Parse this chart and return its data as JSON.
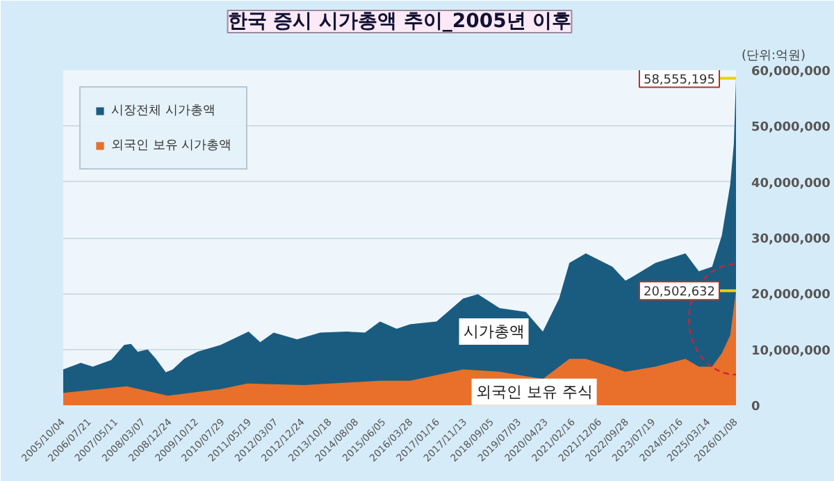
{
  "chart_data": {
    "type": "area",
    "title": "한국 증시 시가총액 추이_2005년 이후",
    "ylabel": "(단위:억원)",
    "series": [
      {
        "name": "시장전체 시가총액",
        "color": "#1a5c80",
        "x": [
          "2005-10-04",
          "2006-04-15",
          "2006-08-25",
          "2007-03-15",
          "2007-08-05",
          "2007-10-20",
          "2008-01-01",
          "2008-04-20",
          "2008-07-20",
          "2008-11-05",
          "2009-01-20",
          "2009-05-25",
          "2009-10-20",
          "2010-07-01",
          "2011-05-05",
          "2011-09-10",
          "2012-02-05",
          "2012-10-20",
          "2013-07-01",
          "2014-04-20",
          "2014-11-05",
          "2015-04-20",
          "2015-10-20",
          "2016-03-15",
          "2017-01-01",
          "2017-10-20",
          "2018-04-01",
          "2018-11-25",
          "2019-09-10",
          "2020-03-15",
          "2020-09-10",
          "2021-01-01",
          "2021-07-01",
          "2022-04-20",
          "2022-09-10",
          "2022-11-25",
          "2023-08-05",
          "2024-07-01",
          "2024-11-25",
          "2025-04-20",
          "2025-08-05",
          "2025-11-05",
          "2025-12-15",
          "2026-01-08"
        ],
        "values": [
          6400000,
          7600000,
          6900000,
          8100000,
          10800000,
          11000000,
          9600000,
          10000000,
          8300000,
          5900000,
          6400000,
          8300000,
          9600000,
          10800000,
          13200000,
          11300000,
          13000000,
          11800000,
          13000000,
          13200000,
          13000000,
          15000000,
          13700000,
          14500000,
          15000000,
          19100000,
          19900000,
          17400000,
          16700000,
          13200000,
          19100000,
          25500000,
          27200000,
          24800000,
          22300000,
          23000000,
          25500000,
          27200000,
          24000000,
          24800000,
          30400000,
          39500000,
          46800000,
          58555195
        ]
      },
      {
        "name": "외국인 보유 시가총액",
        "color": "#e8702a",
        "x": [
          "2005-10-04",
          "2007-09-01",
          "2008-11-25",
          "2010-07-01",
          "2011-04-20",
          "2013-01-01",
          "2015-04-20",
          "2016-03-15",
          "2017-10-20",
          "2018-11-25",
          "2020-03-15",
          "2021-01-01",
          "2021-07-01",
          "2022-09-10",
          "2023-08-05",
          "2024-07-01",
          "2024-11-25",
          "2025-04-20",
          "2025-08-05",
          "2025-11-05",
          "2026-01-08"
        ],
        "values": [
          2200000,
          3400000,
          1700000,
          2900000,
          3900000,
          3600000,
          4400000,
          4400000,
          6400000,
          6000000,
          4700000,
          8300000,
          8300000,
          6000000,
          6900000,
          8300000,
          6900000,
          6900000,
          9300000,
          12500000,
          20502632
        ]
      }
    ],
    "annotations": [
      {
        "text": "58,555,195",
        "x": "2026-01-08",
        "y": 58555195
      },
      {
        "text": "20,502,632",
        "x": "2026-01-08",
        "y": 20502632
      },
      "시가총액",
      "외국인 보유 주식"
    ],
    "xlim": [
      "2005-10-04",
      "2026-01-08"
    ],
    "xticks": [
      {
        "value": "2005-10-04",
        "label": "2005/10/04"
      },
      {
        "value": "2006-07-21",
        "label": "2006/07/21"
      },
      {
        "value": "2007-05-11",
        "label": "2007/05/11"
      },
      {
        "value": "2008-03-07",
        "label": "2008/03/07"
      },
      {
        "value": "2008-12-24",
        "label": "2008/12/24"
      },
      {
        "value": "2009-10-12",
        "label": "2009/10/12"
      },
      {
        "value": "2010-07-29",
        "label": "2010/07/29"
      },
      {
        "value": "2011-05-19",
        "label": "2011/05/19"
      },
      {
        "value": "2012-03-07",
        "label": "2012/03/07"
      },
      {
        "value": "2012-12-24",
        "label": "2012/12/24"
      },
      {
        "value": "2013-10-18",
        "label": "2013/10/18"
      },
      {
        "value": "2014-08-08",
        "label": "2014/08/08"
      },
      {
        "value": "2015-06-05",
        "label": "2015/06/05"
      },
      {
        "value": "2016-03-28",
        "label": "2016/03/28"
      },
      {
        "value": "2017-01-16",
        "label": "2017/01/16"
      },
      {
        "value": "2017-11-13",
        "label": "2017/11/13"
      },
      {
        "value": "2018-09-05",
        "label": "2018/09/05"
      },
      {
        "value": "2019-07-03",
        "label": "2019/07/03"
      },
      {
        "value": "2020-04-23",
        "label": "2020/04/23"
      },
      {
        "value": "2021-02-16",
        "label": "2021/02/16"
      },
      {
        "value": "2021-12-06",
        "label": "2021/12/06"
      },
      {
        "value": "2022-09-28",
        "label": "2022/09/28"
      },
      {
        "value": "2023-07-19",
        "label": "2023/07/19"
      },
      {
        "value": "2024-05-16",
        "label": "2024/05/16"
      },
      {
        "value": "2025-03-14",
        "label": "2025/03/14"
      },
      {
        "value": "2026-01-08",
        "label": "2026/01/08"
      }
    ],
    "ylim": [
      0,
      60000000
    ],
    "yticks": [
      {
        "value": 0,
        "label": "0"
      },
      {
        "value": 10000000,
        "label": "10,000,000"
      },
      {
        "value": 20000000,
        "label": "20,000,000"
      },
      {
        "value": 30000000,
        "label": "30,000,000"
      },
      {
        "value": 40000000,
        "label": "40,000,000"
      },
      {
        "value": 50000000,
        "label": "50,000,000"
      },
      {
        "value": 60000000,
        "label": "60,000,000"
      }
    ],
    "grid": "y",
    "legend": "top left"
  }
}
